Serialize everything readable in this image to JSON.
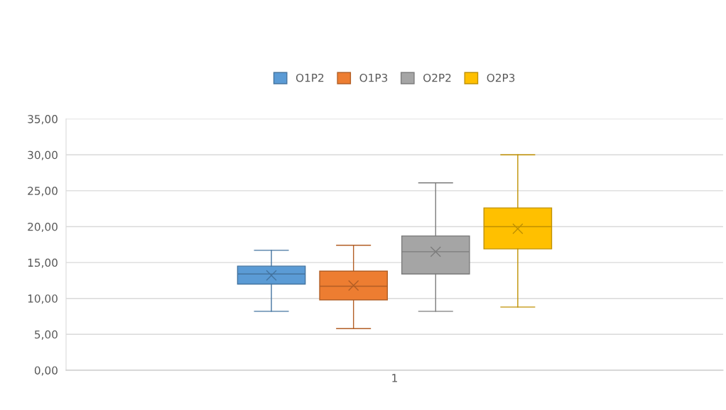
{
  "chart_data": {
    "type": "box",
    "categories": [
      "1"
    ],
    "series": [
      {
        "name": "O1P2",
        "color": "#5b9bd5",
        "boxes": [
          {
            "low": 8.2,
            "q1": 12.0,
            "median": 13.4,
            "q3": 14.5,
            "high": 16.7,
            "mean": 13.2
          }
        ]
      },
      {
        "name": "O1P3",
        "color": "#ed7d31",
        "boxes": [
          {
            "low": 5.8,
            "q1": 9.8,
            "median": 11.7,
            "q3": 13.8,
            "high": 17.4,
            "mean": 11.8
          }
        ]
      },
      {
        "name": "O2P2",
        "color": "#a5a5a5",
        "boxes": [
          {
            "low": 8.2,
            "q1": 13.4,
            "median": 16.5,
            "q3": 18.7,
            "high": 26.1,
            "mean": 16.5
          }
        ]
      },
      {
        "name": "O2P3",
        "color": "#ffc000",
        "boxes": [
          {
            "low": 8.8,
            "q1": 16.9,
            "median": 20.0,
            "q3": 22.6,
            "high": 30.0,
            "mean": 19.7
          }
        ]
      }
    ],
    "ylim": [
      0,
      35
    ],
    "yticks": [
      {
        "value": 0,
        "label": "0,00"
      },
      {
        "value": 5,
        "label": "5,00"
      },
      {
        "value": 10,
        "label": "10,00"
      },
      {
        "value": 15,
        "label": "15,00"
      },
      {
        "value": 20,
        "label": "20,00"
      },
      {
        "value": 25,
        "label": "25,00"
      },
      {
        "value": 30,
        "label": "30,00"
      },
      {
        "value": 35,
        "label": "35,00"
      }
    ],
    "grid": "y",
    "legend": "top"
  }
}
